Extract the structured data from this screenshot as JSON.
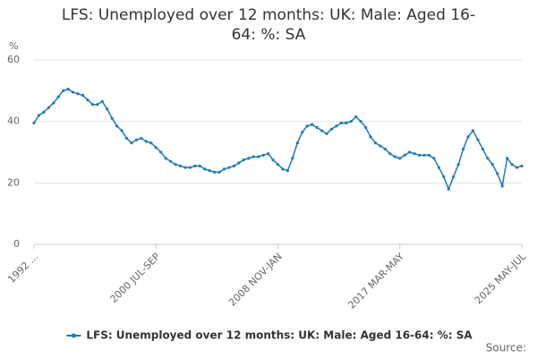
{
  "chart_data": {
    "type": "line",
    "title": "LFS: Unemployed over 12 months: UK: Male: Aged 16-64: %: SA",
    "y_label": "%",
    "source": "Source:",
    "categories": [
      "1992 ...",
      null,
      null,
      null,
      null,
      null,
      null,
      null,
      null,
      null,
      null,
      null,
      null,
      null,
      null,
      null,
      null,
      null,
      null,
      null,
      null,
      null,
      null,
      null,
      null,
      "2000 JUL-SEP",
      null,
      null,
      null,
      null,
      null,
      null,
      null,
      null,
      null,
      null,
      null,
      null,
      null,
      null,
      null,
      null,
      null,
      null,
      null,
      null,
      null,
      null,
      null,
      null,
      "2008 NOV-JAN",
      null,
      null,
      null,
      null,
      null,
      null,
      null,
      null,
      null,
      null,
      null,
      null,
      null,
      null,
      null,
      null,
      null,
      null,
      null,
      null,
      null,
      null,
      null,
      null,
      "2017 MAR-MAY",
      null,
      null,
      null,
      null,
      null,
      null,
      null,
      null,
      null,
      null,
      null,
      null,
      null,
      null,
      null,
      null,
      null,
      null,
      null,
      null,
      null,
      null,
      null,
      null,
      "2025 MAY-JUL"
    ],
    "series": [
      {
        "name": "LFS: Unemployed over 12 months: UK: Male: Aged 16-64: %: SA",
        "color": "#1f7ab8",
        "values": [
          39.5,
          42,
          43,
          44.5,
          46,
          48,
          50,
          50.5,
          49.5,
          49,
          48.5,
          47,
          45.5,
          45.5,
          46.5,
          44,
          41,
          38.5,
          37,
          34.5,
          33,
          34,
          34.5,
          33.5,
          33,
          31.5,
          30,
          28,
          27,
          26,
          25.5,
          25,
          25,
          25.5,
          25.5,
          24.5,
          24,
          23.5,
          23.5,
          24.5,
          25,
          25.5,
          26.5,
          27.5,
          28,
          28.5,
          28.5,
          29,
          29.5,
          27.5,
          26,
          24.5,
          24,
          28,
          33,
          36.5,
          38.5,
          39,
          38,
          37,
          36,
          37.5,
          38.5,
          39.5,
          39.5,
          40,
          41.5,
          40,
          38,
          35,
          33,
          32,
          31,
          29.5,
          28.5,
          28,
          29,
          30,
          29.5,
          29,
          29,
          29,
          28,
          25,
          22,
          18,
          22,
          26,
          31,
          35,
          37,
          34,
          31,
          28,
          26,
          23,
          19,
          28,
          26,
          25,
          25.5
        ]
      }
    ],
    "ylim": [
      0,
      60
    ],
    "yticks": [
      0,
      20,
      40,
      60
    ],
    "grid": true
  }
}
